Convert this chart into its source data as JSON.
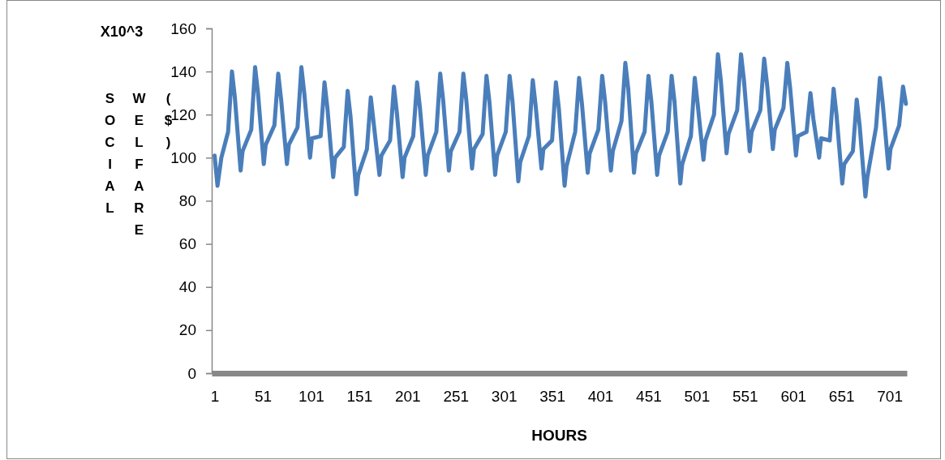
{
  "chart_data": {
    "type": "line",
    "xlabel": "HOURS",
    "ylabel": "SOCIAL WELFARE ($)",
    "annotations": [
      "X10^3"
    ],
    "xlim": [
      -2,
      719
    ],
    "xticks": [
      1,
      51,
      101,
      151,
      201,
      251,
      301,
      351,
      401,
      451,
      501,
      551,
      601,
      651,
      701
    ],
    "ylim": [
      0,
      160
    ],
    "yticks": [
      0,
      20,
      40,
      60,
      80,
      100,
      120,
      140,
      160
    ],
    "marker": "none",
    "line_style": "solid",
    "series": [
      {
        "color": "#4a7ebb",
        "x": [
          1,
          4,
          8,
          15,
          19,
          22,
          28,
          30,
          39,
          43,
          46,
          52,
          54,
          63,
          67,
          70,
          76,
          78,
          87,
          91,
          94,
          100,
          102,
          111,
          115,
          118,
          124,
          126,
          135,
          139,
          142,
          148,
          150,
          159,
          163,
          166,
          172,
          174,
          183,
          187,
          190,
          196,
          198,
          207,
          211,
          214,
          220,
          222,
          231,
          235,
          238,
          244,
          246,
          255,
          259,
          262,
          268,
          270,
          279,
          283,
          286,
          292,
          294,
          303,
          307,
          310,
          316,
          318,
          327,
          331,
          334,
          340,
          342,
          351,
          355,
          358,
          364,
          366,
          375,
          379,
          382,
          388,
          390,
          399,
          403,
          406,
          412,
          414,
          423,
          427,
          430,
          436,
          438,
          447,
          451,
          454,
          460,
          462,
          471,
          475,
          478,
          484,
          486,
          495,
          499,
          502,
          508,
          510,
          519,
          523,
          526,
          532,
          534,
          543,
          547,
          550,
          556,
          558,
          567,
          571,
          574,
          580,
          582,
          591,
          595,
          598,
          604,
          606,
          615,
          619,
          622,
          628,
          630,
          639,
          643,
          646,
          652,
          654,
          663,
          667,
          670,
          676,
          678,
          687,
          691,
          694,
          700,
          702,
          711,
          715,
          718
        ],
        "values": [
          101,
          87,
          100,
          112,
          140,
          128,
          94,
          103,
          113,
          142,
          130,
          97,
          106,
          115,
          139,
          127,
          97,
          106,
          114,
          142,
          130,
          100,
          109,
          110,
          135,
          123,
          91,
          100,
          105,
          131,
          119,
          83,
          92,
          104,
          128,
          116,
          92,
          101,
          108,
          133,
          121,
          91,
          100,
          110,
          135,
          123,
          92,
          101,
          112,
          139,
          127,
          94,
          103,
          112,
          139,
          127,
          95,
          104,
          111,
          138,
          126,
          92,
          101,
          112,
          138,
          126,
          89,
          98,
          110,
          136,
          124,
          95,
          104,
          108,
          135,
          123,
          87,
          96,
          112,
          137,
          125,
          93,
          102,
          113,
          138,
          126,
          94,
          103,
          117,
          144,
          132,
          93,
          102,
          112,
          138,
          126,
          92,
          101,
          112,
          138,
          126,
          88,
          97,
          110,
          137,
          125,
          99,
          108,
          120,
          148,
          136,
          102,
          111,
          122,
          148,
          136,
          103,
          112,
          122,
          146,
          134,
          104,
          113,
          123,
          144,
          132,
          101,
          110,
          112,
          130,
          118,
          100,
          109,
          108,
          132,
          120,
          88,
          97,
          103,
          127,
          115,
          82,
          91,
          114,
          137,
          125,
          95,
          104,
          115,
          133,
          125
        ]
      }
    ]
  }
}
